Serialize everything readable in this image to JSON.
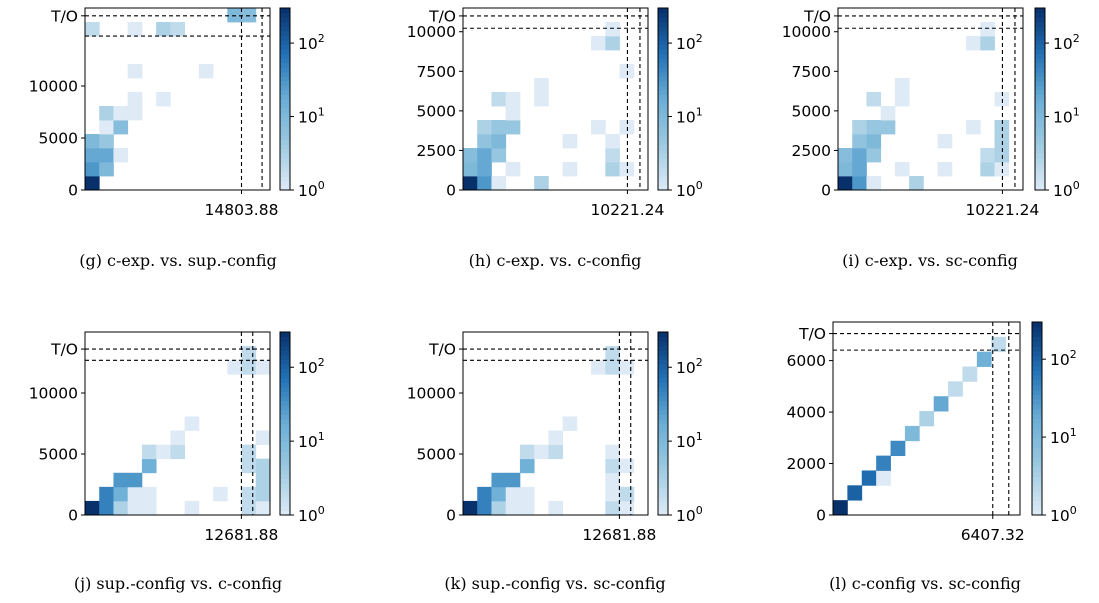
{
  "chart_data": [
    {
      "type": "heatmap",
      "caption": "(g) c-exp. vs. sup.-config",
      "y_ticks": [
        {
          "label": "0",
          "value": 0
        },
        {
          "label": "5000",
          "value": 5000
        },
        {
          "label": "10000",
          "value": 10000
        }
      ],
      "y_timeout_label": "T/O",
      "x_tick_label": "14803.88",
      "x_tick_value": 14803.88,
      "y_max": 17500,
      "y_timeout_value": 16750,
      "y_threshold_lines": [
        16750,
        14803.88
      ],
      "x_threshold_lines": [
        14803.88,
        16750
      ],
      "colorbar": {
        "scale": "log",
        "min": 1,
        "max": 300,
        "labels": [
          "10^0",
          "10^1",
          "10^2"
        ]
      },
      "cells": [
        {
          "c": 0,
          "r": 0,
          "count": 300
        },
        {
          "c": 0,
          "r": 1,
          "count": 30
        },
        {
          "c": 1,
          "r": 1,
          "count": 10
        },
        {
          "c": 0,
          "r": 2,
          "count": 20
        },
        {
          "c": 1,
          "r": 2,
          "count": 20
        },
        {
          "c": 2,
          "r": 2,
          "count": 1
        },
        {
          "c": 0,
          "r": 3,
          "count": 10
        },
        {
          "c": 1,
          "r": 3,
          "count": 5
        },
        {
          "c": 1,
          "r": 4,
          "count": 1
        },
        {
          "c": 2,
          "r": 4,
          "count": 8
        },
        {
          "c": 1,
          "r": 5,
          "count": 3
        },
        {
          "c": 2,
          "r": 5,
          "count": 1
        },
        {
          "c": 3,
          "r": 5,
          "count": 1
        },
        {
          "c": 3,
          "r": 6,
          "count": 1
        },
        {
          "c": 5,
          "r": 6,
          "count": 1
        },
        {
          "c": 3,
          "r": 8,
          "count": 1
        },
        {
          "c": 8,
          "r": 8,
          "count": 1
        },
        {
          "c": 0,
          "r": 11,
          "count": 2
        },
        {
          "c": 3,
          "r": 11,
          "count": 1
        },
        {
          "c": 5,
          "r": 11,
          "count": 3
        },
        {
          "c": 6,
          "r": 11,
          "count": 2
        },
        {
          "c": 10,
          "r": 12,
          "count": 10
        },
        {
          "c": 11,
          "r": 12,
          "count": 8
        }
      ]
    },
    {
      "type": "heatmap",
      "caption": "(h) c-exp. vs. c-config",
      "y_ticks": [
        {
          "label": "0",
          "value": 0
        },
        {
          "label": "2500",
          "value": 2500
        },
        {
          "label": "5000",
          "value": 5000
        },
        {
          "label": "7500",
          "value": 7500
        },
        {
          "label": "10000",
          "value": 10000
        }
      ],
      "y_timeout_label": "T/O",
      "x_tick_label": "10221.24",
      "x_tick_value": 10221.24,
      "y_max": 11500,
      "y_timeout_value": 11000,
      "y_threshold_lines": [
        11000,
        10221.24
      ],
      "x_threshold_lines": [
        10221.24,
        11000
      ],
      "colorbar": {
        "scale": "log",
        "min": 1,
        "max": 300,
        "labels": [
          "10^0",
          "10^1",
          "10^2"
        ]
      },
      "cells": [
        {
          "c": 0,
          "r": 0,
          "count": 300
        },
        {
          "c": 1,
          "r": 0,
          "count": 30
        },
        {
          "c": 2,
          "r": 0,
          "count": 1
        },
        {
          "c": 5,
          "r": 0,
          "count": 3
        },
        {
          "c": 0,
          "r": 1,
          "count": 10
        },
        {
          "c": 1,
          "r": 1,
          "count": 20
        },
        {
          "c": 3,
          "r": 1,
          "count": 1
        },
        {
          "c": 7,
          "r": 1,
          "count": 1
        },
        {
          "c": 10,
          "r": 1,
          "count": 3
        },
        {
          "c": 11,
          "r": 1,
          "count": 1
        },
        {
          "c": 0,
          "r": 2,
          "count": 8
        },
        {
          "c": 1,
          "r": 2,
          "count": 20
        },
        {
          "c": 2,
          "r": 2,
          "count": 5
        },
        {
          "c": 10,
          "r": 2,
          "count": 2
        },
        {
          "c": 1,
          "r": 3,
          "count": 6
        },
        {
          "c": 2,
          "r": 3,
          "count": 10
        },
        {
          "c": 7,
          "r": 3,
          "count": 1
        },
        {
          "c": 10,
          "r": 3,
          "count": 1
        },
        {
          "c": 1,
          "r": 4,
          "count": 3
        },
        {
          "c": 2,
          "r": 4,
          "count": 5
        },
        {
          "c": 3,
          "r": 4,
          "count": 5
        },
        {
          "c": 9,
          "r": 4,
          "count": 1
        },
        {
          "c": 11,
          "r": 4,
          "count": 1
        },
        {
          "c": 3,
          "r": 5,
          "count": 1
        },
        {
          "c": 2,
          "r": 6,
          "count": 2
        },
        {
          "c": 3,
          "r": 6,
          "count": 1
        },
        {
          "c": 5,
          "r": 6,
          "count": 1
        },
        {
          "c": 5,
          "r": 7,
          "count": 1
        },
        {
          "c": 11,
          "r": 8,
          "count": 1
        },
        {
          "c": 9,
          "r": 10,
          "count": 1
        },
        {
          "c": 10,
          "r": 10,
          "count": 3
        },
        {
          "c": 10,
          "r": 11,
          "count": 1
        }
      ]
    },
    {
      "type": "heatmap",
      "caption": "(i) c-exp. vs. sc-config",
      "y_ticks": [
        {
          "label": "0",
          "value": 0
        },
        {
          "label": "2500",
          "value": 2500
        },
        {
          "label": "5000",
          "value": 5000
        },
        {
          "label": "7500",
          "value": 7500
        },
        {
          "label": "10000",
          "value": 10000
        }
      ],
      "y_timeout_label": "T/O",
      "x_tick_label": "10221.24",
      "x_tick_value": 10221.24,
      "y_max": 11500,
      "y_timeout_value": 11000,
      "y_threshold_lines": [
        11000,
        10221.24
      ],
      "x_threshold_lines": [
        10221.24,
        11000
      ],
      "colorbar": {
        "scale": "log",
        "min": 1,
        "max": 300,
        "labels": [
          "10^0",
          "10^1",
          "10^2"
        ]
      },
      "cells": [
        {
          "c": 0,
          "r": 0,
          "count": 300
        },
        {
          "c": 1,
          "r": 0,
          "count": 30
        },
        {
          "c": 2,
          "r": 0,
          "count": 1
        },
        {
          "c": 5,
          "r": 0,
          "count": 3
        },
        {
          "c": 0,
          "r": 1,
          "count": 10
        },
        {
          "c": 1,
          "r": 1,
          "count": 20
        },
        {
          "c": 4,
          "r": 1,
          "count": 1
        },
        {
          "c": 7,
          "r": 1,
          "count": 1
        },
        {
          "c": 10,
          "r": 1,
          "count": 3
        },
        {
          "c": 11,
          "r": 1,
          "count": 1
        },
        {
          "c": 0,
          "r": 2,
          "count": 8
        },
        {
          "c": 1,
          "r": 2,
          "count": 20
        },
        {
          "c": 2,
          "r": 2,
          "count": 5
        },
        {
          "c": 10,
          "r": 2,
          "count": 2
        },
        {
          "c": 11,
          "r": 2,
          "count": 3
        },
        {
          "c": 1,
          "r": 3,
          "count": 6
        },
        {
          "c": 2,
          "r": 3,
          "count": 10
        },
        {
          "c": 7,
          "r": 3,
          "count": 1
        },
        {
          "c": 11,
          "r": 3,
          "count": 3
        },
        {
          "c": 1,
          "r": 4,
          "count": 3
        },
        {
          "c": 2,
          "r": 4,
          "count": 5
        },
        {
          "c": 3,
          "r": 4,
          "count": 5
        },
        {
          "c": 9,
          "r": 4,
          "count": 1
        },
        {
          "c": 11,
          "r": 4,
          "count": 3
        },
        {
          "c": 3,
          "r": 5,
          "count": 1
        },
        {
          "c": 2,
          "r": 6,
          "count": 2
        },
        {
          "c": 4,
          "r": 6,
          "count": 1
        },
        {
          "c": 4,
          "r": 7,
          "count": 1
        },
        {
          "c": 11,
          "r": 6,
          "count": 1
        },
        {
          "c": 9,
          "r": 10,
          "count": 1
        },
        {
          "c": 10,
          "r": 10,
          "count": 3
        },
        {
          "c": 10,
          "r": 11,
          "count": 1
        }
      ]
    },
    {
      "type": "heatmap",
      "caption": "(j) sup.-config vs. c-config",
      "y_ticks": [
        {
          "label": "0",
          "value": 0
        },
        {
          "label": "5000",
          "value": 5000
        },
        {
          "label": "10000",
          "value": 10000
        }
      ],
      "y_timeout_label": "T/O",
      "x_tick_label": "12681.88",
      "x_tick_value": 12681.88,
      "y_max": 15000,
      "y_timeout_value": 13600,
      "y_threshold_lines": [
        13600,
        12681.88
      ],
      "x_threshold_lines": [
        12681.88,
        13600
      ],
      "colorbar": {
        "scale": "log",
        "min": 1,
        "max": 300,
        "labels": [
          "10^0",
          "10^1",
          "10^2"
        ]
      },
      "cells": [
        {
          "c": 0,
          "r": 0,
          "count": 300
        },
        {
          "c": 1,
          "r": 0,
          "count": 50
        },
        {
          "c": 2,
          "r": 0,
          "count": 3
        },
        {
          "c": 3,
          "r": 0,
          "count": 1
        },
        {
          "c": 4,
          "r": 0,
          "count": 1
        },
        {
          "c": 7,
          "r": 0,
          "count": 1
        },
        {
          "c": 11,
          "r": 0,
          "count": 2
        },
        {
          "c": 12,
          "r": 0,
          "count": 1
        },
        {
          "c": 1,
          "r": 1,
          "count": 50
        },
        {
          "c": 2,
          "r": 1,
          "count": 15
        },
        {
          "c": 3,
          "r": 1,
          "count": 1
        },
        {
          "c": 4,
          "r": 1,
          "count": 1
        },
        {
          "c": 9,
          "r": 1,
          "count": 1
        },
        {
          "c": 11,
          "r": 1,
          "count": 2
        },
        {
          "c": 12,
          "r": 1,
          "count": 3
        },
        {
          "c": 2,
          "r": 2,
          "count": 30
        },
        {
          "c": 3,
          "r": 2,
          "count": 30
        },
        {
          "c": 12,
          "r": 2,
          "count": 3
        },
        {
          "c": 4,
          "r": 3,
          "count": 15
        },
        {
          "c": 11,
          "r": 3,
          "count": 2
        },
        {
          "c": 12,
          "r": 3,
          "count": 3
        },
        {
          "c": 4,
          "r": 4,
          "count": 2
        },
        {
          "c": 5,
          "r": 4,
          "count": 1
        },
        {
          "c": 6,
          "r": 4,
          "count": 2
        },
        {
          "c": 11,
          "r": 4,
          "count": 2
        },
        {
          "c": 12,
          "r": 5,
          "count": 1
        },
        {
          "c": 6,
          "r": 5,
          "count": 1
        },
        {
          "c": 7,
          "r": 6,
          "count": 1
        },
        {
          "c": 10,
          "r": 10,
          "count": 1
        },
        {
          "c": 11,
          "r": 10,
          "count": 2
        },
        {
          "c": 12,
          "r": 10,
          "count": 1
        },
        {
          "c": 11,
          "r": 11,
          "count": 2
        }
      ]
    },
    {
      "type": "heatmap",
      "caption": "(k) sup.-config vs. sc-config",
      "y_ticks": [
        {
          "label": "0",
          "value": 0
        },
        {
          "label": "5000",
          "value": 5000
        },
        {
          "label": "10000",
          "value": 10000
        }
      ],
      "y_timeout_label": "T/O",
      "x_tick_label": "12681.88",
      "x_tick_value": 12681.88,
      "y_max": 15000,
      "y_timeout_value": 13600,
      "y_threshold_lines": [
        13600,
        12681.88
      ],
      "x_threshold_lines": [
        12681.88,
        13600
      ],
      "colorbar": {
        "scale": "log",
        "min": 1,
        "max": 300,
        "labels": [
          "10^0",
          "10^1",
          "10^2"
        ]
      },
      "cells": [
        {
          "c": 0,
          "r": 0,
          "count": 300
        },
        {
          "c": 1,
          "r": 0,
          "count": 50
        },
        {
          "c": 2,
          "r": 0,
          "count": 3
        },
        {
          "c": 3,
          "r": 0,
          "count": 1
        },
        {
          "c": 4,
          "r": 0,
          "count": 1
        },
        {
          "c": 6,
          "r": 0,
          "count": 1
        },
        {
          "c": 10,
          "r": 0,
          "count": 2
        },
        {
          "c": 11,
          "r": 0,
          "count": 1
        },
        {
          "c": 1,
          "r": 1,
          "count": 50
        },
        {
          "c": 2,
          "r": 1,
          "count": 15
        },
        {
          "c": 3,
          "r": 1,
          "count": 1
        },
        {
          "c": 4,
          "r": 1,
          "count": 1
        },
        {
          "c": 10,
          "r": 1,
          "count": 1
        },
        {
          "c": 11,
          "r": 1,
          "count": 2
        },
        {
          "c": 2,
          "r": 2,
          "count": 30
        },
        {
          "c": 3,
          "r": 2,
          "count": 30
        },
        {
          "c": 10,
          "r": 2,
          "count": 1
        },
        {
          "c": 4,
          "r": 3,
          "count": 15
        },
        {
          "c": 10,
          "r": 3,
          "count": 2
        },
        {
          "c": 11,
          "r": 3,
          "count": 1
        },
        {
          "c": 4,
          "r": 4,
          "count": 2
        },
        {
          "c": 5,
          "r": 4,
          "count": 1
        },
        {
          "c": 6,
          "r": 4,
          "count": 2
        },
        {
          "c": 10,
          "r": 4,
          "count": 1
        },
        {
          "c": 6,
          "r": 5,
          "count": 1
        },
        {
          "c": 7,
          "r": 6,
          "count": 1
        },
        {
          "c": 9,
          "r": 10,
          "count": 1
        },
        {
          "c": 10,
          "r": 10,
          "count": 2
        },
        {
          "c": 11,
          "r": 10,
          "count": 1
        },
        {
          "c": 10,
          "r": 11,
          "count": 2
        }
      ]
    },
    {
      "type": "heatmap",
      "caption": "(l) c-config vs. sc-config",
      "y_ticks": [
        {
          "label": "0",
          "value": 0
        },
        {
          "label": "2000",
          "value": 2000
        },
        {
          "label": "4000",
          "value": 4000
        },
        {
          "label": "6000",
          "value": 6000
        }
      ],
      "y_timeout_label": "T/O",
      "x_tick_label": "6407.32",
      "x_tick_value": 6407.32,
      "y_max": 7500,
      "y_timeout_value": 7050,
      "y_threshold_lines": [
        7050,
        6407.32
      ],
      "x_threshold_lines": [
        6407.32,
        7050
      ],
      "colorbar": {
        "scale": "log",
        "min": 1,
        "max": 300,
        "labels": [
          "10^0",
          "10^1",
          "10^2"
        ]
      },
      "cells": [
        {
          "c": 0,
          "r": 0,
          "count": 300
        },
        {
          "c": 1,
          "r": 1,
          "count": 100
        },
        {
          "c": 2,
          "r": 2,
          "count": 80
        },
        {
          "c": 3,
          "r": 2,
          "count": 1
        },
        {
          "c": 3,
          "r": 3,
          "count": 50
        },
        {
          "c": 4,
          "r": 4,
          "count": 40
        },
        {
          "c": 5,
          "r": 5,
          "count": 10
        },
        {
          "c": 6,
          "r": 6,
          "count": 3
        },
        {
          "c": 7,
          "r": 7,
          "count": 20
        },
        {
          "c": 8,
          "r": 8,
          "count": 2
        },
        {
          "c": 9,
          "r": 9,
          "count": 2
        },
        {
          "c": 10,
          "r": 10,
          "count": 15
        },
        {
          "c": 11,
          "r": 11,
          "count": 2
        }
      ]
    }
  ]
}
